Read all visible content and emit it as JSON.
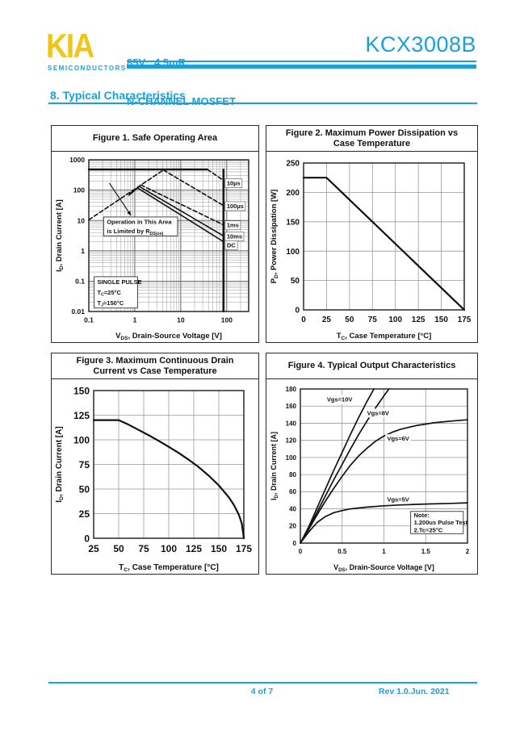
{
  "page": {
    "header": {
      "logo_text": "KIA",
      "logo_sub": "SEMICONDUCTORS",
      "spec_line1": "85V   4.5mR",
      "spec_line2": "N-CHANNEL MOSFET",
      "part_number": "KCX3008B"
    },
    "section_title": "8.  Typical Characteristics",
    "footer": {
      "page_info": "4 of 7",
      "revision": "Rev 1.0.Jun. 2021"
    },
    "colors": {
      "accent_cyan": "#1BA0DC",
      "logo_yellow": "#F0C419",
      "line_black": "#111111",
      "grid_gray": "#999999"
    }
  },
  "chart_data": [
    {
      "type": "line",
      "title": "Figure 1. Safe Operating Area",
      "xlabel": "V_DS_, Drain-Source Voltage [V]",
      "ylabel": "I_D_, Drain Current [A]",
      "xscale": "log",
      "yscale": "log",
      "xlim": [
        0.1,
        300
      ],
      "ylim": [
        0.01,
        1000
      ],
      "xticks": [
        0.1,
        1,
        10,
        100
      ],
      "yticks": [
        0.01,
        0.1,
        1,
        10,
        100,
        1000
      ],
      "series": [
        {
          "name": "rdson-limit-line",
          "dash": true,
          "points": [
            [
              0.1,
              10.5
            ],
            [
              4.2,
              460
            ]
          ]
        },
        {
          "name": "pulsed-current-limit",
          "dash": false,
          "width": 2.4,
          "points": [
            [
              0.1,
              480
            ],
            [
              38,
              480
            ]
          ]
        },
        {
          "name": "t-10us",
          "dash": true,
          "points": [
            [
              38,
              480
            ],
            [
              85,
              210
            ]
          ]
        },
        {
          "name": "t-100us",
          "dash": true,
          "points": [
            [
              4.2,
              460
            ],
            [
              85,
              31
            ]
          ]
        },
        {
          "name": "t-1ms",
          "dash": true,
          "points": [
            [
              1.35,
              148
            ],
            [
              85,
              7.2
            ]
          ]
        },
        {
          "name": "t-10ms",
          "dash": false,
          "points": [
            [
              0.78,
              75
            ],
            [
              1.25,
              132
            ],
            [
              85,
              3.1
            ]
          ]
        },
        {
          "name": "dc",
          "dash": false,
          "points": [
            [
              0.75,
              68
            ],
            [
              1.15,
              118
            ],
            [
              85,
              2.0
            ]
          ]
        },
        {
          "name": "breakdown-voltage-limit",
          "dash": false,
          "width": 2.2,
          "points": [
            [
              85,
              0.01
            ],
            [
              85,
              480
            ]
          ]
        }
      ],
      "labels": [
        {
          "text": "10µs",
          "x": 100,
          "y": 170,
          "boxed": true
        },
        {
          "text": "100µs",
          "x": 100,
          "y": 30,
          "boxed": true
        },
        {
          "text": "1ms",
          "x": 100,
          "y": 7,
          "boxed": true
        },
        {
          "text": "10ms",
          "x": 100,
          "y": 3.0,
          "boxed": true
        },
        {
          "text": "DC",
          "x": 100,
          "y": 1.55,
          "boxed": true
        }
      ],
      "boxes": [
        {
          "x": 0.13,
          "y": 0.013,
          "x2": 1.15,
          "y2": 0.14,
          "lines": [
            "SINGLE PULSE",
            "T_C_=25°C",
            "T_J_=150°C"
          ]
        },
        {
          "x": 0.21,
          "y": 3.1,
          "x2": 8.5,
          "y2": 13,
          "lines": [
            "Operation in This Area",
            "is Limited by R_DS(on)_"
          ]
        }
      ],
      "arrows": [
        {
          "x1": 0.28,
          "y1": 170,
          "x2": 0.83,
          "y2": 14.5
        }
      ]
    },
    {
      "type": "line",
      "title": "Figure 2. Maximum Power Dissipation vs Case Temperature",
      "xlabel": "T_C_, Case Temperature [°C]",
      "ylabel": "P_D_, Power Dissipation [W]",
      "xscale": "linear",
      "yscale": "linear",
      "xlim": [
        0,
        175
      ],
      "ylim": [
        0,
        250
      ],
      "xticks": [
        0,
        25,
        50,
        75,
        100,
        125,
        150,
        175
      ],
      "yticks": [
        0,
        50,
        100,
        150,
        200,
        250
      ],
      "series": [
        {
          "name": "max-power-dissipation",
          "width": 2.2,
          "points": [
            [
              0,
              225
            ],
            [
              25,
              225
            ],
            [
              175,
              0
            ]
          ]
        }
      ]
    },
    {
      "type": "line",
      "title": "Figure 3. Maximum Continuous Drain Current vs Case Temperature",
      "xlabel": "T_C_, Case Temperature [°C]",
      "ylabel": "I_D_, Drain Current [A]",
      "xscale": "linear",
      "yscale": "linear",
      "xlim": [
        25,
        175
      ],
      "ylim": [
        0,
        150
      ],
      "xticks": [
        25,
        50,
        75,
        100,
        125,
        150,
        175
      ],
      "yticks": [
        0,
        25,
        50,
        75,
        100,
        125,
        150
      ],
      "series": [
        {
          "name": "max-continuous-drain-current",
          "width": 2.2,
          "points": [
            [
              25,
              120
            ],
            [
              50,
              120
            ],
            [
              60,
              115.3
            ],
            [
              70,
              110
            ],
            [
              80,
              104.6
            ],
            [
              90,
              98.9
            ],
            [
              100,
              92.9
            ],
            [
              110,
              86.6
            ],
            [
              120,
              79.7
            ],
            [
              130,
              72.2
            ],
            [
              140,
              63.5
            ],
            [
              150,
              53.7
            ],
            [
              160,
              41.6
            ],
            [
              165,
              33.9
            ],
            [
              170,
              24
            ],
            [
              173,
              15
            ],
            [
              175,
              0
            ]
          ]
        }
      ]
    },
    {
      "type": "line",
      "title": "Figure 4. Typical Output Characteristics",
      "xlabel": "V_DS_, Drain-Source Voltage [V]",
      "ylabel": "I_D_, Drain Current [A]",
      "xscale": "linear",
      "yscale": "linear",
      "xlim": [
        0,
        2
      ],
      "ylim": [
        0,
        180
      ],
      "xticks": [
        0,
        0.5,
        1,
        1.5,
        2
      ],
      "yticks": [
        0,
        20,
        40,
        60,
        80,
        100,
        120,
        140,
        160,
        180
      ],
      "series": [
        {
          "name": "vgs-10v",
          "width": 1.7,
          "points": [
            [
              0,
              0
            ],
            [
              0.1,
              19
            ],
            [
              0.2,
              41
            ],
            [
              0.3,
              63
            ],
            [
              0.4,
              85
            ],
            [
              0.5,
              106
            ],
            [
              0.6,
              127
            ],
            [
              0.7,
              147
            ],
            [
              0.8,
              166
            ],
            [
              0.88,
              180
            ]
          ]
        },
        {
          "name": "vgs-8v",
          "width": 1.7,
          "points": [
            [
              0,
              0
            ],
            [
              0.1,
              17
            ],
            [
              0.2,
              36
            ],
            [
              0.3,
              55
            ],
            [
              0.4,
              74
            ],
            [
              0.5,
              92
            ],
            [
              0.6,
              110
            ],
            [
              0.7,
              127
            ],
            [
              0.8,
              143
            ],
            [
              0.9,
              158
            ],
            [
              1,
              172
            ],
            [
              1.06,
              180
            ]
          ]
        },
        {
          "name": "vgs-6v",
          "width": 1.7,
          "points": [
            [
              0,
              0
            ],
            [
              0.1,
              16
            ],
            [
              0.2,
              33
            ],
            [
              0.3,
              49
            ],
            [
              0.4,
              64
            ],
            [
              0.5,
              78
            ],
            [
              0.6,
              91
            ],
            [
              0.7,
              102
            ],
            [
              0.8,
              111
            ],
            [
              0.9,
              119
            ],
            [
              1,
              125
            ],
            [
              1.1,
              129.5
            ],
            [
              1.2,
              133
            ],
            [
              1.4,
              137.5
            ],
            [
              1.6,
              140.5
            ],
            [
              1.8,
              142.5
            ],
            [
              2,
              144
            ]
          ]
        },
        {
          "name": "vgs-5v",
          "width": 1.7,
          "points": [
            [
              0,
              0
            ],
            [
              0.1,
              13
            ],
            [
              0.2,
              24
            ],
            [
              0.3,
              31
            ],
            [
              0.4,
              35.5
            ],
            [
              0.5,
              38
            ],
            [
              0.6,
              40
            ],
            [
              0.8,
              42
            ],
            [
              1,
              43.5
            ],
            [
              1.2,
              44.6
            ],
            [
              1.5,
              45.6
            ],
            [
              1.8,
              46.4
            ],
            [
              2,
              47
            ]
          ]
        }
      ],
      "labels": [
        {
          "text": "Vgs=10V",
          "x": 0.47,
          "y": 168,
          "anchor": "middle"
        },
        {
          "text": "Vgs=8V",
          "x": 0.93,
          "y": 152,
          "anchor": "middle"
        },
        {
          "text": "Vgs=6V",
          "x": 1.17,
          "y": 122,
          "anchor": "middle"
        },
        {
          "text": "Vgs=5V",
          "x": 1.17,
          "y": 51,
          "anchor": "middle"
        }
      ],
      "boxes": [
        {
          "x": 1.32,
          "y": 11,
          "x2": 1.95,
          "y2": 37,
          "lines": [
            "Note:",
            "1.200us Pulse Test",
            "2.Tc=25°C"
          ]
        }
      ]
    }
  ]
}
